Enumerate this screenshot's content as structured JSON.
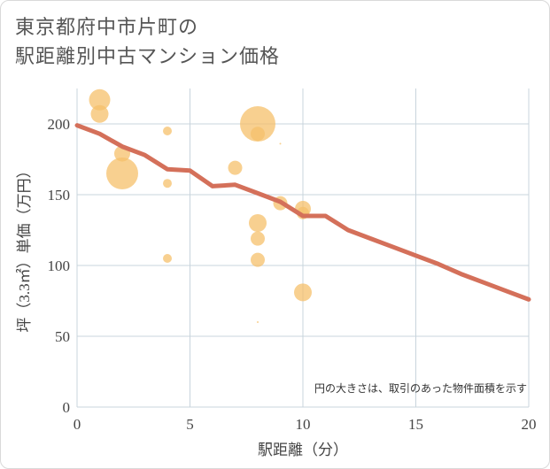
{
  "title": {
    "line1": "東京都府中市片町の",
    "line2": "駅距離別中古マンション価格"
  },
  "chart_data": {
    "type": "scatter",
    "xlabel": "駅距離（分）",
    "ylabel": "坪（3.3㎡）単価（万円）",
    "xlim": [
      0,
      20
    ],
    "ylim": [
      0,
      225
    ],
    "xticks": [
      0,
      5,
      10,
      15,
      20
    ],
    "yticks": [
      0,
      50,
      100,
      150,
      200
    ],
    "grid": true,
    "note": "円の大きさは、取引のあった物件面積を示す",
    "colors": {
      "bubble": "#f5c06b",
      "line": "#d4705a",
      "grid": "#c8d4dc"
    },
    "bubbles": [
      {
        "x": 1,
        "y": 217,
        "size": 12
      },
      {
        "x": 1,
        "y": 207,
        "size": 10
      },
      {
        "x": 2,
        "y": 179,
        "size": 9
      },
      {
        "x": 2,
        "y": 165,
        "size": 18
      },
      {
        "x": 4,
        "y": 195,
        "size": 5
      },
      {
        "x": 4,
        "y": 158,
        "size": 5
      },
      {
        "x": 4,
        "y": 105,
        "size": 5
      },
      {
        "x": 7,
        "y": 169,
        "size": 8
      },
      {
        "x": 8,
        "y": 200,
        "size": 20
      },
      {
        "x": 8,
        "y": 193,
        "size": 8
      },
      {
        "x": 8,
        "y": 130,
        "size": 10
      },
      {
        "x": 8,
        "y": 119,
        "size": 8
      },
      {
        "x": 8,
        "y": 104,
        "size": 8
      },
      {
        "x": 8,
        "y": 60,
        "size": 1
      },
      {
        "x": 9,
        "y": 186,
        "size": 1
      },
      {
        "x": 9,
        "y": 144,
        "size": 8
      },
      {
        "x": 10,
        "y": 140,
        "size": 9
      },
      {
        "x": 10,
        "y": 137,
        "size": 7
      },
      {
        "x": 10,
        "y": 81,
        "size": 10
      }
    ],
    "series": [
      {
        "type": "line",
        "x": [
          0,
          1,
          2,
          3,
          4,
          5,
          6,
          7,
          8,
          9,
          10,
          11,
          12,
          13,
          14,
          15,
          16,
          17,
          18,
          19,
          20
        ],
        "values": [
          199,
          193,
          184,
          178,
          168,
          167,
          156,
          157,
          151,
          145,
          135,
          135,
          125,
          119,
          113,
          107,
          101,
          94,
          88,
          82,
          76
        ]
      }
    ]
  }
}
